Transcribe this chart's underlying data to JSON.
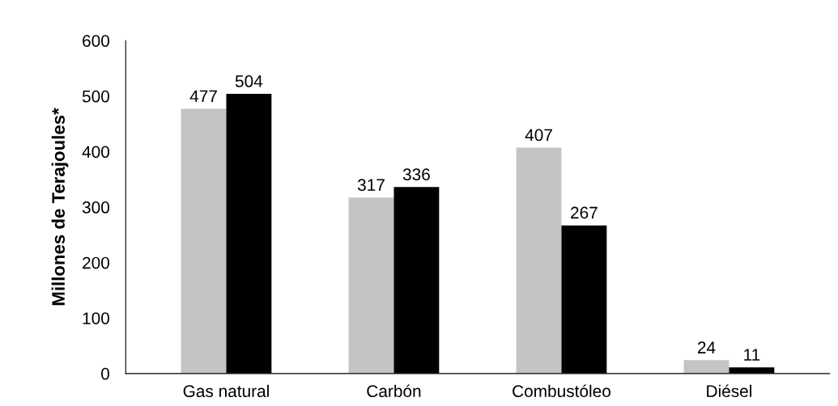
{
  "chart_data": {
    "type": "bar",
    "ylabel": "Millones de Terajoules*",
    "categories": [
      "Gas natural",
      "Carbón",
      "Combustóleo",
      "Diésel"
    ],
    "series": [
      {
        "color": "#c4c4c4",
        "values": [
          477,
          317,
          407,
          24
        ]
      },
      {
        "color": "#000000",
        "values": [
          504,
          336,
          267,
          11
        ]
      }
    ],
    "ylim": [
      0,
      600
    ],
    "yticks": [
      0,
      100,
      200,
      300,
      400,
      500,
      600
    ],
    "data_labels": true,
    "grid": false,
    "legend": false
  }
}
